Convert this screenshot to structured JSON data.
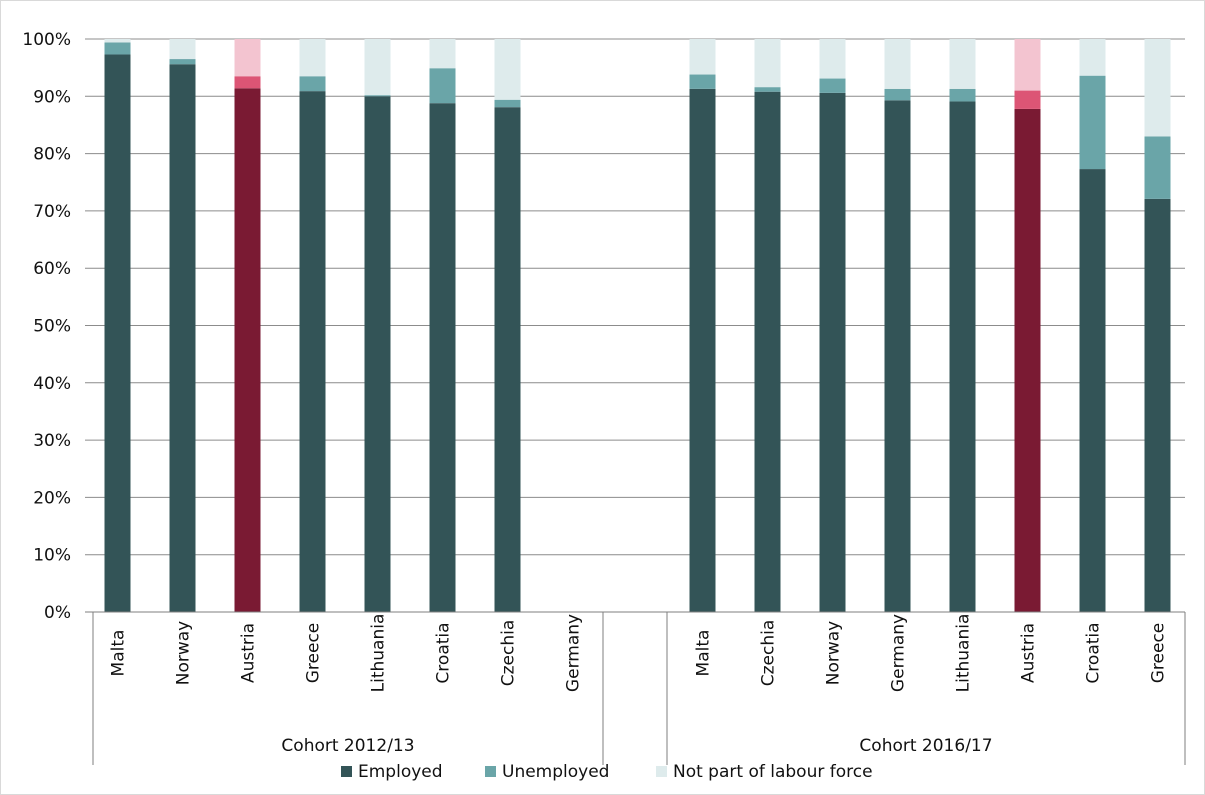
{
  "colors": {
    "employed": "#335457",
    "unemployed": "#6aa5a8",
    "not_labour": "#deebec",
    "employed_highlight": "#7a1a33",
    "unemployed_highlight": "#dc5575",
    "not_labour_highlight": "#f3c4d0",
    "grid": "#8c8c8c",
    "axis": "#7f7f7f"
  },
  "chart_data": {
    "type": "bar",
    "stacked": true,
    "y_tick_labels": [
      "0%",
      "10%",
      "20%",
      "30%",
      "40%",
      "50%",
      "60%",
      "70%",
      "80%",
      "90%",
      "100%"
    ],
    "ylim": [
      0,
      100
    ],
    "grid": true,
    "legend_position": "bottom",
    "legend": [
      "Employed",
      "Unemployed",
      "Not part of labour force"
    ],
    "groups": [
      {
        "label": "Cohort 2012/13",
        "categories": [
          "Malta",
          "Norway",
          "Austria",
          "Greece",
          "Lithuania",
          "Croatia",
          "Czechia",
          "Germany"
        ],
        "highlight": [
          false,
          false,
          true,
          false,
          false,
          false,
          false,
          false
        ],
        "series": [
          {
            "name": "Employed",
            "values": [
              97.3,
              95.6,
              91.4,
              90.9,
              90.0,
              88.8,
              88.1,
              null
            ]
          },
          {
            "name": "Unemployed",
            "values": [
              2.1,
              0.9,
              2.1,
              2.6,
              0.2,
              6.1,
              1.3,
              null
            ]
          },
          {
            "name": "Not part of labour force",
            "values": [
              0.6,
              3.5,
              6.5,
              6.5,
              9.8,
              5.1,
              10.6,
              null
            ]
          }
        ]
      },
      {
        "label": "Cohort 2016/17",
        "categories": [
          "Malta",
          "Czechia",
          "Norway",
          "Germany",
          "Lithuania",
          "Austria",
          "Croatia",
          "Greece"
        ],
        "highlight": [
          false,
          false,
          false,
          false,
          false,
          true,
          false,
          false
        ],
        "series": [
          {
            "name": "Employed",
            "values": [
              91.3,
              90.8,
              90.6,
              89.3,
              89.1,
              87.8,
              77.3,
              72.1
            ]
          },
          {
            "name": "Unemployed",
            "values": [
              2.5,
              0.8,
              2.5,
              2.0,
              2.2,
              3.2,
              16.3,
              10.9
            ]
          },
          {
            "name": "Not part of labour force",
            "values": [
              6.2,
              8.4,
              6.9,
              8.7,
              8.7,
              9.0,
              6.4,
              17.0
            ]
          }
        ]
      }
    ]
  }
}
